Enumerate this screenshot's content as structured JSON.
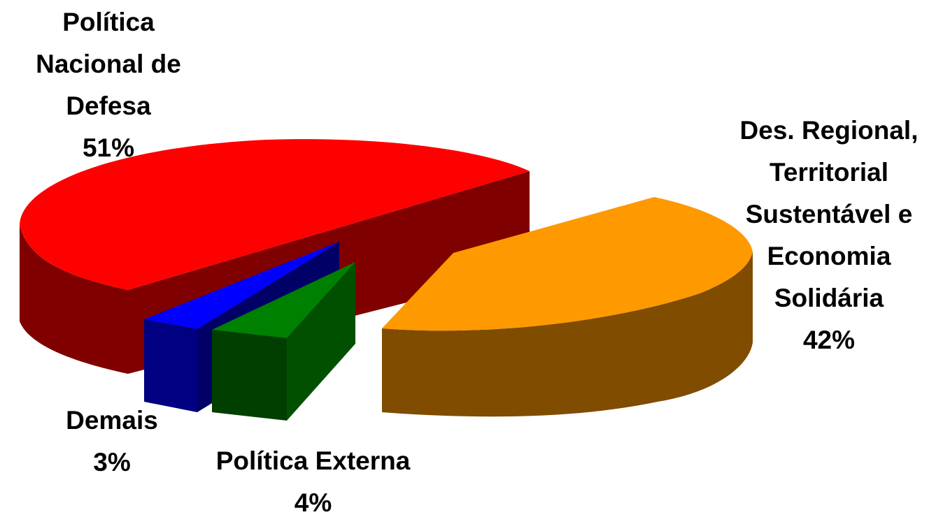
{
  "chart_data": {
    "type": "pie",
    "style": "3d-exploded",
    "slices": [
      {
        "key": "defesa",
        "label": "Política Nacional de Defesa",
        "pct_label": "51%",
        "value": 51,
        "color": "#ff0000",
        "side_color": "#800000"
      },
      {
        "key": "regional",
        "label": "Des. Regional, Territorial Sustentável e Economia Solidária",
        "pct_label": "42%",
        "value": 42,
        "color": "#ff9900",
        "side_color": "#7f4c00"
      },
      {
        "key": "externa",
        "label": "Política Externa",
        "pct_label": "4%",
        "value": 4,
        "color": "#008000",
        "side_color": "#003f00"
      },
      {
        "key": "demais",
        "label": "Demais",
        "pct_label": "3%",
        "value": 3,
        "color": "#0000ff",
        "side_color": "#000080"
      }
    ],
    "legend": "none",
    "title": "",
    "labels": {
      "defesa": [
        "Política",
        "Nacional de",
        "Defesa",
        "51%"
      ],
      "regional": [
        "Des. Regional,",
        "Territorial",
        "Sustentável e",
        "Economia",
        "Solidária",
        "42%"
      ],
      "demais": [
        "Demais",
        "3%"
      ],
      "externa": [
        "Política Externa",
        "4%"
      ]
    }
  }
}
